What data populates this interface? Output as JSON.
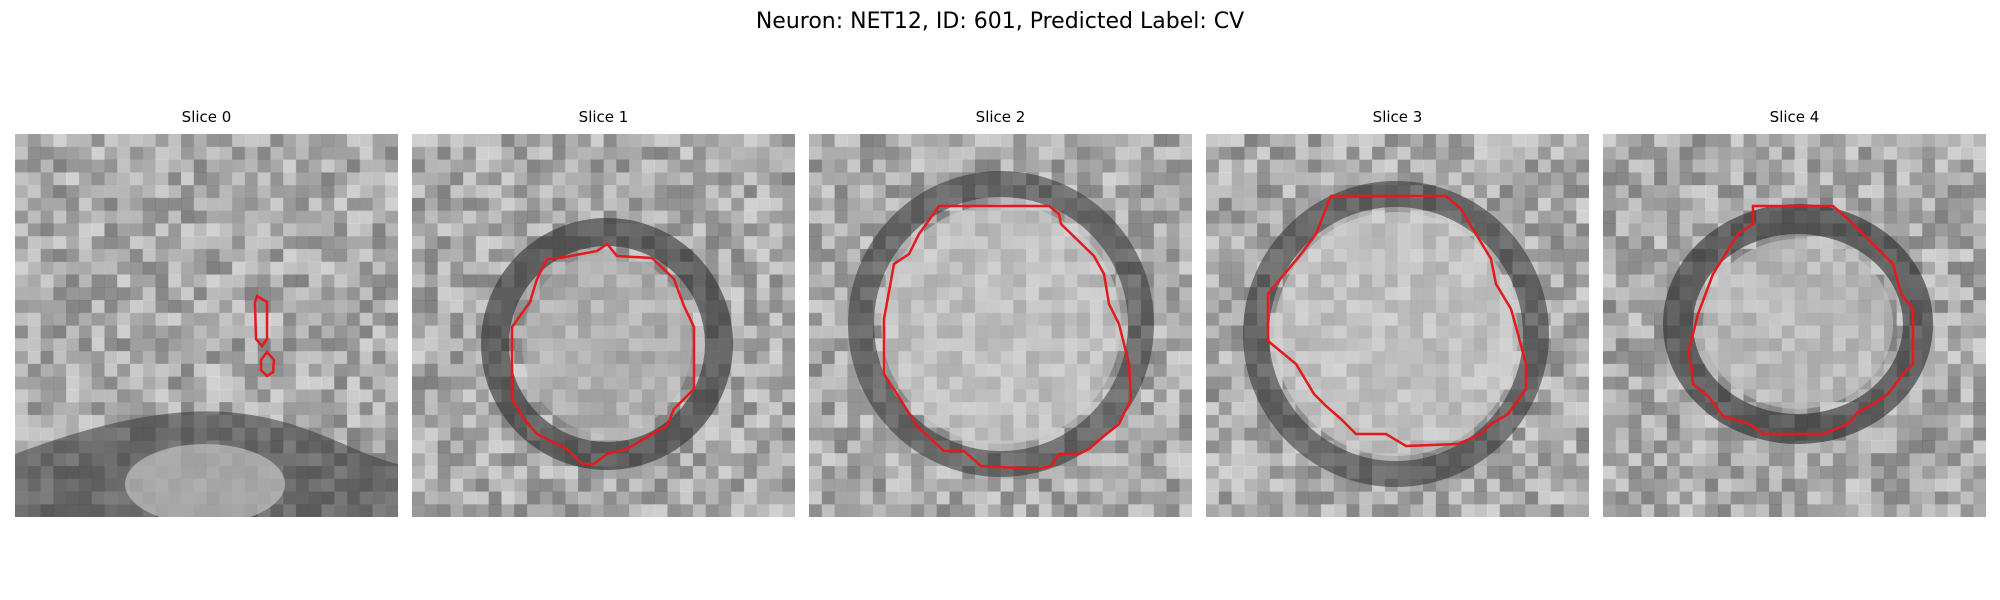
{
  "figure": {
    "suptitle": "Neuron: NET12, ID: 601, Predicted Label: CV"
  },
  "panels": [
    {
      "title": "Slice 0"
    },
    {
      "title": "Slice 1"
    },
    {
      "title": "Slice 2"
    },
    {
      "title": "Slice 3"
    },
    {
      "title": "Slice 4"
    }
  ],
  "colors": {
    "contour": "#e41a1c",
    "background": "#ffffff"
  },
  "image_type": "grayscale microscopy crop with red segmentation contour"
}
